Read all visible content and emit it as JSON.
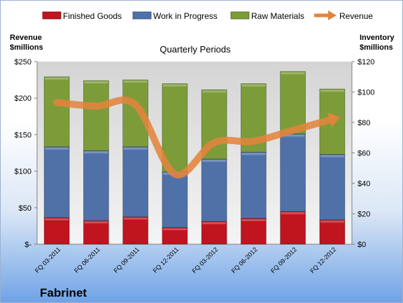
{
  "chart_data": {
    "type": "bar",
    "stacked": true,
    "title": "Quarterly Periods",
    "company": "Fabrinet",
    "categories": [
      "FQ 03-2011",
      "FQ 06-2011",
      "FQ 09-2011",
      "FQ 12-2011",
      "FQ 03-2012",
      "FQ 06-2012",
      "FQ 09-2012",
      "FQ 12-2012"
    ],
    "left_axis": {
      "label_line1": "Revenue",
      "label_line2": "$millions",
      "ylim": [
        0,
        250
      ],
      "ticks": [
        0,
        50,
        100,
        150,
        200,
        250
      ],
      "tick_labels": [
        "$-",
        "$50",
        "$100",
        "$150",
        "$200",
        "$250"
      ]
    },
    "right_axis": {
      "label_line1": "Inventory",
      "label_line2": "$millions",
      "ylim": [
        0,
        120
      ],
      "ticks": [
        0,
        20,
        40,
        60,
        80,
        100,
        120
      ],
      "tick_labels": [
        "$0",
        "$20",
        "$40",
        "$60",
        "$80",
        "$100",
        "$120"
      ]
    },
    "series": [
      {
        "name": "Finished Goods",
        "axis": "right",
        "color": "#c0141e",
        "values": [
          17.5,
          15.5,
          18,
          11,
          15,
          17,
          21.5,
          16
        ]
      },
      {
        "name": "Work in Progress",
        "axis": "right",
        "color": "#4f71a8",
        "values": [
          46.5,
          46,
          46,
          36.5,
          41,
          43.5,
          51,
          43
        ]
      },
      {
        "name": "Raw Materials",
        "axis": "right",
        "color": "#7c9c3a",
        "values": [
          46,
          46,
          44,
          58,
          45.5,
          45,
          41,
          43
        ]
      },
      {
        "name": "Revenue",
        "axis": "left",
        "type": "line",
        "color": "#e2843c",
        "values": [
          194,
          189,
          191,
          96,
          139,
          141,
          156,
          171
        ]
      }
    ],
    "legend_position": "top",
    "grid": false
  }
}
